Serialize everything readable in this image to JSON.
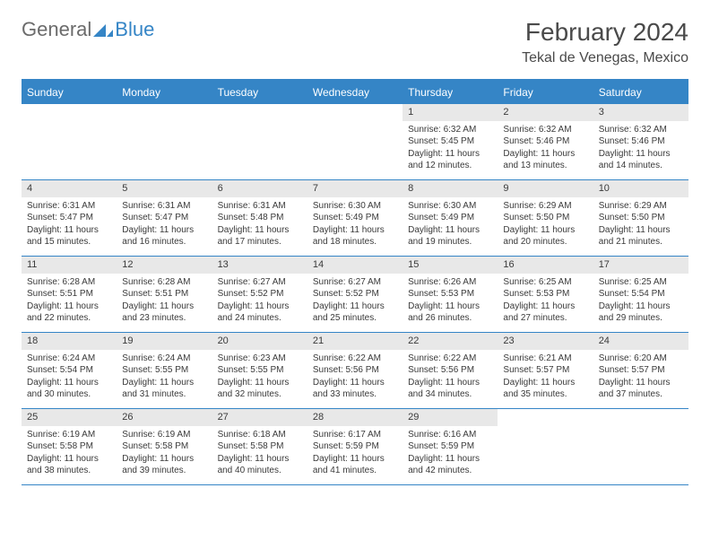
{
  "colors": {
    "accent": "#3585c6",
    "header_bg": "#3585c6",
    "daynum_bg": "#e8e8e8",
    "text": "#3a3a3a",
    "logo_gray": "#6b6b6b",
    "logo_blue": "#3585c6",
    "background": "#ffffff"
  },
  "typography": {
    "base_family": "Arial",
    "month_title_size": 28,
    "location_size": 16,
    "dow_size": 12,
    "cell_size": 10
  },
  "logo": {
    "part1": "General",
    "part2": "Blue"
  },
  "title": "February 2024",
  "location": "Tekal de Venegas, Mexico",
  "days_of_week": [
    "Sunday",
    "Monday",
    "Tuesday",
    "Wednesday",
    "Thursday",
    "Friday",
    "Saturday"
  ],
  "weeks": [
    [
      null,
      null,
      null,
      null,
      {
        "n": "1",
        "sunrise": "Sunrise: 6:32 AM",
        "sunset": "Sunset: 5:45 PM",
        "dl1": "Daylight: 11 hours",
        "dl2": "and 12 minutes."
      },
      {
        "n": "2",
        "sunrise": "Sunrise: 6:32 AM",
        "sunset": "Sunset: 5:46 PM",
        "dl1": "Daylight: 11 hours",
        "dl2": "and 13 minutes."
      },
      {
        "n": "3",
        "sunrise": "Sunrise: 6:32 AM",
        "sunset": "Sunset: 5:46 PM",
        "dl1": "Daylight: 11 hours",
        "dl2": "and 14 minutes."
      }
    ],
    [
      {
        "n": "4",
        "sunrise": "Sunrise: 6:31 AM",
        "sunset": "Sunset: 5:47 PM",
        "dl1": "Daylight: 11 hours",
        "dl2": "and 15 minutes."
      },
      {
        "n": "5",
        "sunrise": "Sunrise: 6:31 AM",
        "sunset": "Sunset: 5:47 PM",
        "dl1": "Daylight: 11 hours",
        "dl2": "and 16 minutes."
      },
      {
        "n": "6",
        "sunrise": "Sunrise: 6:31 AM",
        "sunset": "Sunset: 5:48 PM",
        "dl1": "Daylight: 11 hours",
        "dl2": "and 17 minutes."
      },
      {
        "n": "7",
        "sunrise": "Sunrise: 6:30 AM",
        "sunset": "Sunset: 5:49 PM",
        "dl1": "Daylight: 11 hours",
        "dl2": "and 18 minutes."
      },
      {
        "n": "8",
        "sunrise": "Sunrise: 6:30 AM",
        "sunset": "Sunset: 5:49 PM",
        "dl1": "Daylight: 11 hours",
        "dl2": "and 19 minutes."
      },
      {
        "n": "9",
        "sunrise": "Sunrise: 6:29 AM",
        "sunset": "Sunset: 5:50 PM",
        "dl1": "Daylight: 11 hours",
        "dl2": "and 20 minutes."
      },
      {
        "n": "10",
        "sunrise": "Sunrise: 6:29 AM",
        "sunset": "Sunset: 5:50 PM",
        "dl1": "Daylight: 11 hours",
        "dl2": "and 21 minutes."
      }
    ],
    [
      {
        "n": "11",
        "sunrise": "Sunrise: 6:28 AM",
        "sunset": "Sunset: 5:51 PM",
        "dl1": "Daylight: 11 hours",
        "dl2": "and 22 minutes."
      },
      {
        "n": "12",
        "sunrise": "Sunrise: 6:28 AM",
        "sunset": "Sunset: 5:51 PM",
        "dl1": "Daylight: 11 hours",
        "dl2": "and 23 minutes."
      },
      {
        "n": "13",
        "sunrise": "Sunrise: 6:27 AM",
        "sunset": "Sunset: 5:52 PM",
        "dl1": "Daylight: 11 hours",
        "dl2": "and 24 minutes."
      },
      {
        "n": "14",
        "sunrise": "Sunrise: 6:27 AM",
        "sunset": "Sunset: 5:52 PM",
        "dl1": "Daylight: 11 hours",
        "dl2": "and 25 minutes."
      },
      {
        "n": "15",
        "sunrise": "Sunrise: 6:26 AM",
        "sunset": "Sunset: 5:53 PM",
        "dl1": "Daylight: 11 hours",
        "dl2": "and 26 minutes."
      },
      {
        "n": "16",
        "sunrise": "Sunrise: 6:25 AM",
        "sunset": "Sunset: 5:53 PM",
        "dl1": "Daylight: 11 hours",
        "dl2": "and 27 minutes."
      },
      {
        "n": "17",
        "sunrise": "Sunrise: 6:25 AM",
        "sunset": "Sunset: 5:54 PM",
        "dl1": "Daylight: 11 hours",
        "dl2": "and 29 minutes."
      }
    ],
    [
      {
        "n": "18",
        "sunrise": "Sunrise: 6:24 AM",
        "sunset": "Sunset: 5:54 PM",
        "dl1": "Daylight: 11 hours",
        "dl2": "and 30 minutes."
      },
      {
        "n": "19",
        "sunrise": "Sunrise: 6:24 AM",
        "sunset": "Sunset: 5:55 PM",
        "dl1": "Daylight: 11 hours",
        "dl2": "and 31 minutes."
      },
      {
        "n": "20",
        "sunrise": "Sunrise: 6:23 AM",
        "sunset": "Sunset: 5:55 PM",
        "dl1": "Daylight: 11 hours",
        "dl2": "and 32 minutes."
      },
      {
        "n": "21",
        "sunrise": "Sunrise: 6:22 AM",
        "sunset": "Sunset: 5:56 PM",
        "dl1": "Daylight: 11 hours",
        "dl2": "and 33 minutes."
      },
      {
        "n": "22",
        "sunrise": "Sunrise: 6:22 AM",
        "sunset": "Sunset: 5:56 PM",
        "dl1": "Daylight: 11 hours",
        "dl2": "and 34 minutes."
      },
      {
        "n": "23",
        "sunrise": "Sunrise: 6:21 AM",
        "sunset": "Sunset: 5:57 PM",
        "dl1": "Daylight: 11 hours",
        "dl2": "and 35 minutes."
      },
      {
        "n": "24",
        "sunrise": "Sunrise: 6:20 AM",
        "sunset": "Sunset: 5:57 PM",
        "dl1": "Daylight: 11 hours",
        "dl2": "and 37 minutes."
      }
    ],
    [
      {
        "n": "25",
        "sunrise": "Sunrise: 6:19 AM",
        "sunset": "Sunset: 5:58 PM",
        "dl1": "Daylight: 11 hours",
        "dl2": "and 38 minutes."
      },
      {
        "n": "26",
        "sunrise": "Sunrise: 6:19 AM",
        "sunset": "Sunset: 5:58 PM",
        "dl1": "Daylight: 11 hours",
        "dl2": "and 39 minutes."
      },
      {
        "n": "27",
        "sunrise": "Sunrise: 6:18 AM",
        "sunset": "Sunset: 5:58 PM",
        "dl1": "Daylight: 11 hours",
        "dl2": "and 40 minutes."
      },
      {
        "n": "28",
        "sunrise": "Sunrise: 6:17 AM",
        "sunset": "Sunset: 5:59 PM",
        "dl1": "Daylight: 11 hours",
        "dl2": "and 41 minutes."
      },
      {
        "n": "29",
        "sunrise": "Sunrise: 6:16 AM",
        "sunset": "Sunset: 5:59 PM",
        "dl1": "Daylight: 11 hours",
        "dl2": "and 42 minutes."
      },
      null,
      null
    ]
  ]
}
